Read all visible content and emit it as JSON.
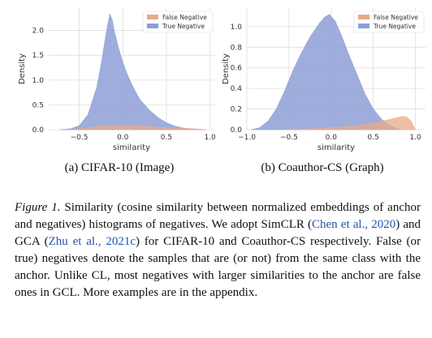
{
  "chart_data": [
    {
      "type": "area",
      "xlabel": "similarity",
      "ylabel": "Density",
      "xlim": [
        -0.85,
        1.05
      ],
      "ylim": [
        0,
        2.45
      ],
      "xticks": [
        "−0.5",
        "0.0",
        "0.5",
        "1.0"
      ],
      "xtick_values": [
        -0.5,
        0.0,
        0.5,
        1.0
      ],
      "yticks": [
        "0.0",
        "0.5",
        "1.0",
        "1.5",
        "2.0"
      ],
      "ytick_values": [
        0.0,
        0.5,
        1.0,
        1.5,
        2.0
      ],
      "grid": true,
      "legend": "top-right",
      "series": [
        {
          "name": "False Negative",
          "color": "#e8a98a",
          "x": [
            -0.7,
            -0.55,
            -0.4,
            -0.3,
            -0.2,
            -0.1,
            0.0,
            0.1,
            0.2,
            0.3,
            0.4,
            0.5,
            0.6,
            0.7,
            0.8,
            0.9,
            0.95
          ],
          "values": [
            0.0,
            0.01,
            0.03,
            0.06,
            0.08,
            0.09,
            0.09,
            0.085,
            0.07,
            0.06,
            0.05,
            0.04,
            0.035,
            0.03,
            0.02,
            0.01,
            0.0
          ]
        },
        {
          "name": "True Negative",
          "color": "#8e9fd6",
          "x": [
            -0.72,
            -0.6,
            -0.5,
            -0.4,
            -0.3,
            -0.25,
            -0.2,
            -0.17,
            -0.15,
            -0.12,
            -0.1,
            -0.05,
            0.0,
            0.05,
            0.1,
            0.15,
            0.2,
            0.3,
            0.4,
            0.5,
            0.6,
            0.7,
            0.8,
            0.9,
            0.95
          ],
          "values": [
            0.0,
            0.02,
            0.08,
            0.3,
            0.85,
            1.3,
            1.85,
            2.15,
            2.33,
            2.2,
            2.0,
            1.65,
            1.35,
            1.12,
            0.92,
            0.75,
            0.6,
            0.4,
            0.25,
            0.14,
            0.07,
            0.03,
            0.01,
            0.0,
            0.0
          ]
        }
      ]
    },
    {
      "type": "area",
      "xlabel": "similarity",
      "ylabel": "Density",
      "xlim": [
        -1.0,
        1.12
      ],
      "ylim": [
        0,
        1.18
      ],
      "xticks": [
        "−1.0",
        "−0.5",
        "0.0",
        "0.5",
        "1.0"
      ],
      "xtick_values": [
        -1.0,
        -0.5,
        0.0,
        0.5,
        1.0
      ],
      "yticks": [
        "0.0",
        "0.2",
        "0.4",
        "0.6",
        "0.8",
        "1.0"
      ],
      "ytick_values": [
        0.0,
        0.2,
        0.4,
        0.6,
        0.8,
        1.0
      ],
      "grid": true,
      "legend": "top-right",
      "series": [
        {
          "name": "False Negative",
          "color": "#e8a98a",
          "x": [
            -0.6,
            -0.4,
            -0.2,
            0.0,
            0.2,
            0.4,
            0.6,
            0.7,
            0.8,
            0.85,
            0.9,
            0.95,
            1.0
          ],
          "values": [
            0.0,
            0.005,
            0.01,
            0.02,
            0.03,
            0.05,
            0.08,
            0.1,
            0.12,
            0.13,
            0.12,
            0.08,
            0.0
          ]
        },
        {
          "name": "True Negative",
          "color": "#8e9fd6",
          "x": [
            -0.95,
            -0.85,
            -0.75,
            -0.65,
            -0.55,
            -0.45,
            -0.35,
            -0.25,
            -0.15,
            -0.08,
            -0.02,
            0.05,
            0.12,
            0.2,
            0.3,
            0.4,
            0.5,
            0.6,
            0.7,
            0.78,
            0.85
          ],
          "values": [
            0.0,
            0.02,
            0.08,
            0.2,
            0.38,
            0.58,
            0.75,
            0.9,
            1.02,
            1.09,
            1.12,
            1.05,
            0.92,
            0.75,
            0.55,
            0.35,
            0.2,
            0.1,
            0.04,
            0.01,
            0.0
          ]
        }
      ]
    }
  ],
  "subcaptions": [
    "(a) CIFAR-10 (Image)",
    "(b) Coauthor-CS (Graph)"
  ],
  "caption": {
    "label": "Figure 1.",
    "p1": " Similarity (cosine similarity between normalized embeddings of anchor and negatives) histograms of negatives. We adopt SimCLR (",
    "cite1": "Chen et al., 2020",
    "p2": ") and GCA (",
    "cite2": "Zhu et al., 2021c",
    "p3": ") for CIFAR-10 and Coauthor-CS respectively. False (or true) negatives denote the samples that are (or not) from the same class with the anchor. Unlike CL, most negatives with larger similarities to the anchor are false ones in GCL. More examples are in the appendix."
  }
}
